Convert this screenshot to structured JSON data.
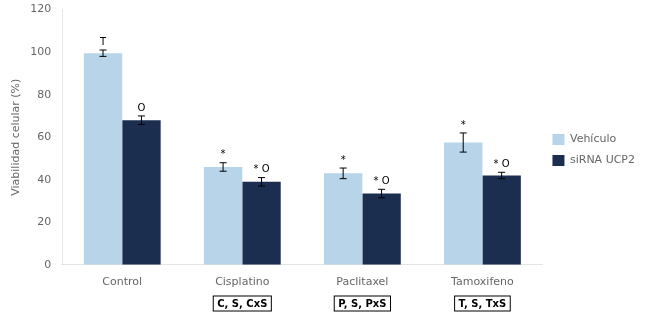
{
  "chart_data": {
    "type": "bar",
    "categories": [
      "Control",
      "Cisplatino",
      "Paclitaxel",
      "Tamoxifeno"
    ],
    "ylabel": "Viabilidad celular (%)",
    "ylim": [
      0,
      120
    ],
    "yticks": [
      0,
      20,
      40,
      60,
      80,
      100,
      120
    ],
    "grid": false,
    "legend": "right",
    "series": [
      {
        "name": "Vehículo",
        "color": "#b8d4e8",
        "values": [
          99.5,
          46.0,
          43.0,
          57.5
        ],
        "errors": [
          1.5,
          2.0,
          2.5,
          4.5
        ],
        "annotations": [
          "T",
          "*",
          "*",
          "*"
        ]
      },
      {
        "name": "siRNA UCP2",
        "color": "#1c2e50",
        "values": [
          68.0,
          39.0,
          33.5,
          42.0
        ],
        "errors": [
          2.0,
          2.0,
          2.0,
          1.5
        ],
        "annotations": [
          "O",
          "* O",
          "* O",
          "* O"
        ]
      }
    ],
    "annotations": [
      {
        "category": "Cisplatino",
        "text": "C, S, CxS"
      },
      {
        "category": "Paclitaxel",
        "text": "P, S, PxS"
      },
      {
        "category": "Tamoxifeno",
        "text": "T, S, TxS"
      }
    ]
  }
}
